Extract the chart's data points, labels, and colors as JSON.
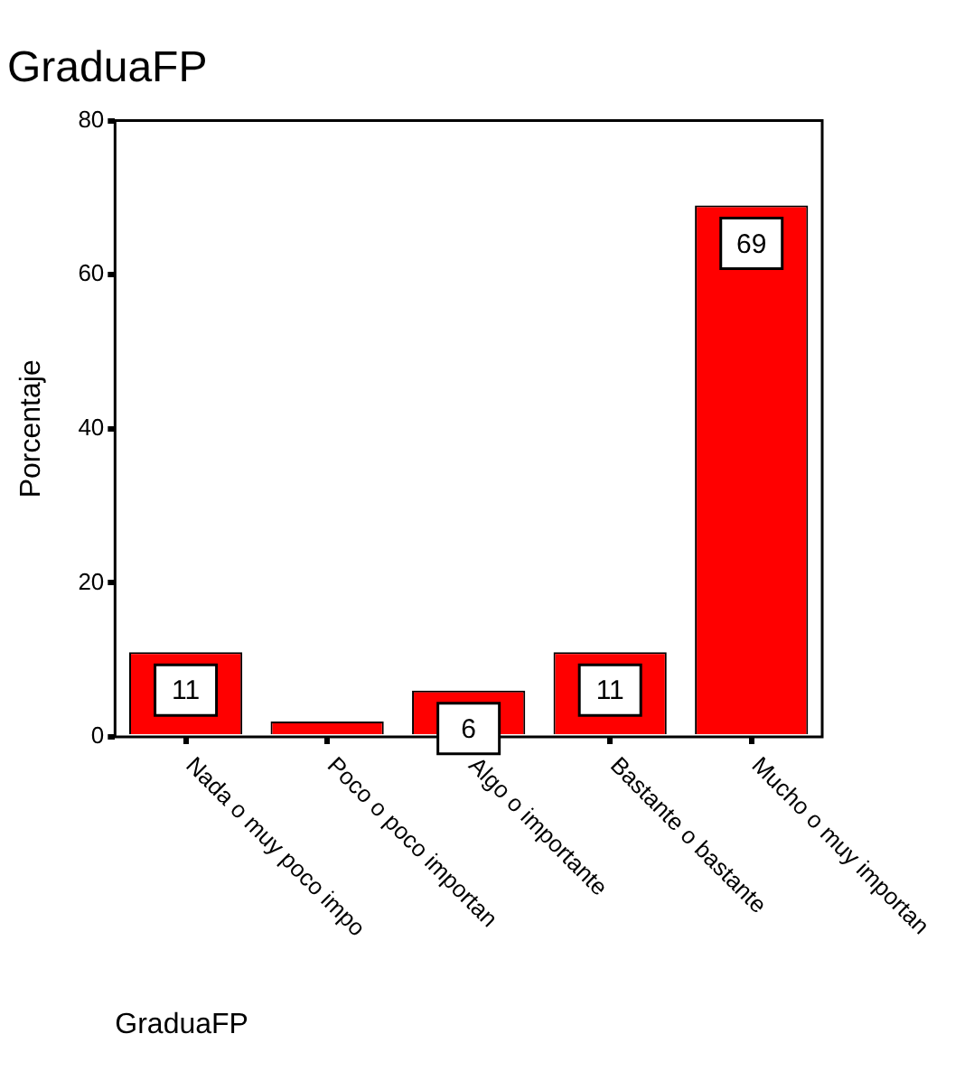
{
  "chart_data": {
    "type": "bar",
    "title": "GraduaFP",
    "xlabel": "GraduaFP",
    "ylabel": "Porcentaje",
    "categories": [
      "Nada o muy poco impo",
      "Poco o poco importan",
      "Algo o importante",
      "Bastante o bastante",
      "Mucho o muy importan"
    ],
    "values": [
      11,
      2,
      6,
      11,
      69
    ],
    "value_labels": [
      "11",
      null,
      "6",
      "11",
      "69"
    ],
    "color": "#ff0000",
    "ylim": [
      0,
      80
    ],
    "yticks": [
      0,
      20,
      40,
      60,
      80
    ],
    "grid": false,
    "legend": false
  }
}
